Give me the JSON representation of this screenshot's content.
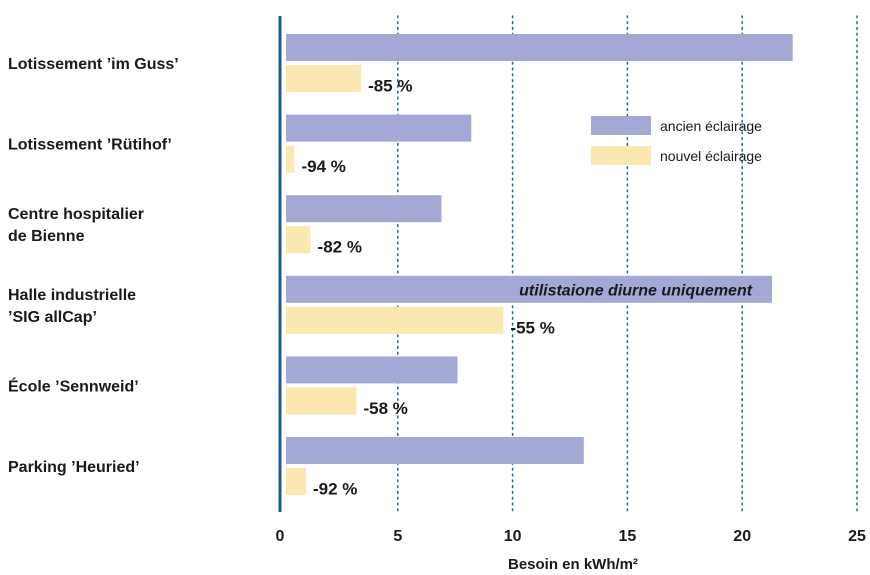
{
  "colors": {
    "old": "#a3a9d4",
    "new": "#fbe8b0",
    "axis": "#1b5e8c",
    "grid": "#2a6f9c",
    "text": "#1a1a1a"
  },
  "chart_data": {
    "type": "bar",
    "orientation": "horizontal",
    "title": "",
    "xlabel": "Besoin en kWh/m²",
    "ylabel": "",
    "xlim": [
      0,
      25
    ],
    "xticks": [
      0,
      5,
      10,
      15,
      20,
      25
    ],
    "grid": "vertical dotted",
    "legend_position": "top-right",
    "categories": [
      [
        "Lotissement ’im Guss’"
      ],
      [
        "Lotissement ’Rütihof’"
      ],
      [
        "Centre hospitalier",
        "de Bienne"
      ],
      [
        "Halle industrielle",
        "’SIG allCap’"
      ],
      [
        "École ’Sennweid’"
      ],
      [
        "Parking ’Heuried’"
      ]
    ],
    "series": [
      {
        "name": "ancien éclairage",
        "color_key": "old",
        "values": [
          22.2,
          8.2,
          6.9,
          21.3,
          7.6,
          13.1
        ]
      },
      {
        "name": "nouvel éclairage",
        "color_key": "new",
        "values": [
          3.4,
          0.5,
          1.2,
          9.6,
          3.2,
          1.0
        ]
      }
    ],
    "reduction_labels": [
      "-85 %",
      "-94 %",
      "-82 %",
      "-55 %",
      "-58 %",
      "-92 %"
    ],
    "annotations": [
      {
        "category_index": 3,
        "series_index": 0,
        "text": "utilistaione diurne uniquement"
      }
    ]
  }
}
